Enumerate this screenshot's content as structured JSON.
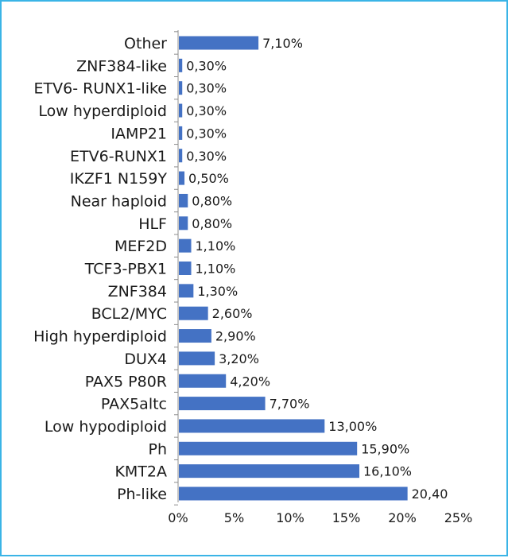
{
  "chart_data": {
    "type": "bar",
    "orientation": "horizontal",
    "categories": [
      "Other",
      "ZNF384-like",
      "ETV6- RUNX1-like",
      "Low hyperdiploid",
      "IAMP21",
      "ETV6-RUNX1",
      "IKZF1 N159Y",
      "Near haploid",
      "HLF",
      "MEF2D",
      "TCF3-PBX1",
      "ZNF384",
      "BCL2/MYC",
      "High hyperdiploid",
      "DUX4",
      "PAX5 P80R",
      "PAX5altc",
      "Low hypodiploid",
      "Ph",
      "KMT2A",
      "Ph-like"
    ],
    "values": [
      7.1,
      0.3,
      0.3,
      0.3,
      0.3,
      0.3,
      0.5,
      0.8,
      0.8,
      1.1,
      1.1,
      1.3,
      2.6,
      2.9,
      3.2,
      4.2,
      7.7,
      13.0,
      15.9,
      16.1,
      20.4
    ],
    "value_labels": [
      "7,10%",
      "0,30%",
      "0,30%",
      "0,30%",
      "0,30%",
      "0,30%",
      "0,50%",
      "0,80%",
      "0,80%",
      "1,10%",
      "1,10%",
      "1,30%",
      "2,60%",
      "2,90%",
      "3,20%",
      "4,20%",
      "7,70%",
      "13,00%",
      "15,90%",
      "16,10%",
      "20,40"
    ],
    "x_ticks": [
      "0%",
      "5%",
      "10%",
      "15%",
      "20%",
      "25%"
    ],
    "xlim": [
      0,
      25
    ],
    "title": "",
    "xlabel": "",
    "ylabel": "",
    "grid": false,
    "bar_color": "#4472c4",
    "border_color": "#3ab4e6"
  }
}
